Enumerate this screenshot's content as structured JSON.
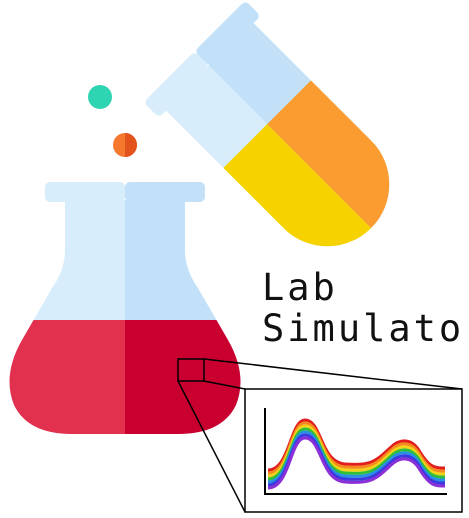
{
  "logo": {
    "line1": "Lab",
    "line2": "Simulator"
  }
}
